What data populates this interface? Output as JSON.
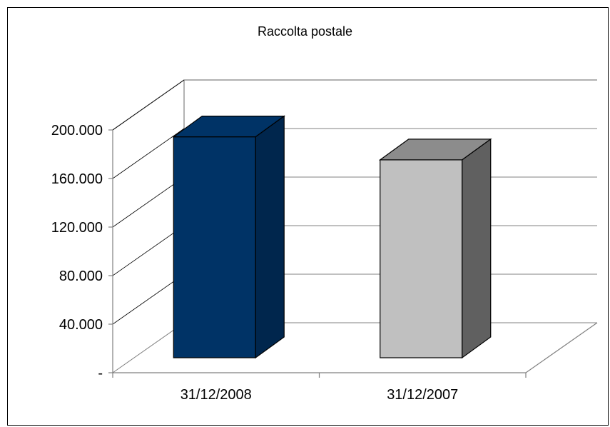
{
  "chart_data": {
    "type": "bar",
    "title": "Raccolta postale",
    "categories": [
      "31/12/2008",
      "31/12/2007"
    ],
    "values": [
      182000,
      163000
    ],
    "ylim": [
      0,
      200000
    ],
    "yticks": [
      {
        "value": 0,
        "label": "-"
      },
      {
        "value": 40000,
        "label": "40.000"
      },
      {
        "value": 80000,
        "label": "80.000"
      },
      {
        "value": 120000,
        "label": "120.000"
      },
      {
        "value": 160000,
        "label": "160.000"
      },
      {
        "value": 200000,
        "label": "200.000"
      }
    ],
    "grid": true,
    "legend": "none",
    "colors": {
      "bar_front": [
        "#003366",
        "#c0c0c0"
      ],
      "bar_top": [
        "#003366",
        "#8c8c8c"
      ],
      "bar_side": [
        "#00264d",
        "#606060"
      ]
    }
  }
}
